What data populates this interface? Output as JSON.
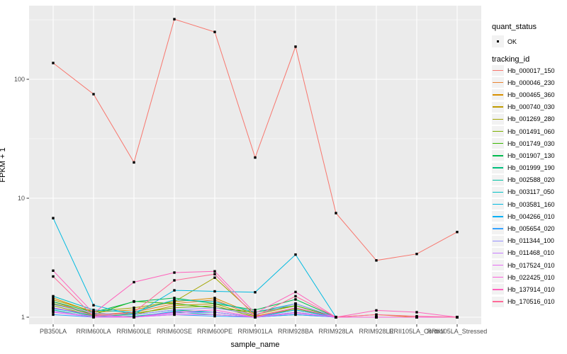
{
  "figure": {
    "panel_bg": "#EBEBEB",
    "grid_color": "#FFFFFF",
    "tick_color": "#333333",
    "tick_label_color": "#4D4D4D",
    "point_color": "#000000"
  },
  "legend": {
    "quant_status_title": "quant_status",
    "quant_status_items": [
      {
        "label": "OK"
      }
    ],
    "tracking_title": "tracking_id"
  },
  "chart_data": {
    "type": "line",
    "title": "",
    "xlabel": "sample_name",
    "ylabel": "FPKM + 1",
    "y_scale": "log10",
    "y_ticks": [
      1,
      10,
      100
    ],
    "y_minor_ticks": [
      3.162,
      31.62,
      316.2
    ],
    "ylim": [
      0.87,
      420
    ],
    "grid": true,
    "legend_position": "right",
    "marker": "black-square",
    "categories": [
      "PB350LA",
      "RRIM600LA",
      "RRIM600LE",
      "RRIM600SE",
      "RRIM600PE",
      "RRIM901LA",
      "RRIM928BA",
      "RRIM928LA",
      "RRIM928LE",
      "RRII105LA_Control",
      "RRII105LA_Stressed"
    ],
    "series": [
      {
        "name": "Hb_000017_150",
        "color": "#F8766D",
        "values": [
          137,
          75,
          20,
          320,
          250,
          22,
          188,
          7.5,
          3.0,
          3.4,
          5.2
        ]
      },
      {
        "name": "Hb_000046_230",
        "color": "#EA8331",
        "values": [
          1.35,
          1.05,
          1.1,
          1.3,
          1.4,
          1.02,
          1.2,
          1.0,
          1.0,
          1.0,
          1.0
        ]
      },
      {
        "name": "Hb_000465_360",
        "color": "#D89000",
        "values": [
          1.45,
          1.1,
          1.15,
          1.35,
          1.45,
          1.05,
          1.3,
          1.0,
          1.05,
          1.0,
          1.0
        ]
      },
      {
        "name": "Hb_000740_030",
        "color": "#C09B00",
        "values": [
          1.3,
          1.08,
          1.05,
          1.25,
          1.3,
          1.02,
          1.15,
          1.0,
          1.0,
          1.0,
          1.0
        ]
      },
      {
        "name": "Hb_001269_280",
        "color": "#A3A500",
        "values": [
          1.4,
          1.12,
          1.2,
          1.35,
          2.15,
          1.05,
          1.25,
          1.0,
          1.0,
          1.0,
          1.0
        ]
      },
      {
        "name": "Hb_001491_060",
        "color": "#7CAE00",
        "values": [
          1.25,
          1.03,
          1.08,
          1.2,
          1.25,
          1.0,
          1.18,
          1.0,
          1.0,
          1.0,
          1.0
        ]
      },
      {
        "name": "Hb_001749_030",
        "color": "#39B600",
        "values": [
          1.3,
          1.05,
          1.36,
          1.3,
          1.2,
          1.1,
          1.25,
          1.0,
          1.0,
          1.0,
          1.0
        ]
      },
      {
        "name": "Hb_001907_130",
        "color": "#00BB4E",
        "values": [
          1.35,
          1.1,
          1.35,
          1.45,
          1.3,
          1.15,
          1.41,
          1.0,
          1.0,
          1.0,
          1.0
        ]
      },
      {
        "name": "Hb_001999_190",
        "color": "#00BF7D",
        "values": [
          1.2,
          1.02,
          1.05,
          1.15,
          1.1,
          1.0,
          1.1,
          1.0,
          1.0,
          1.0,
          1.0
        ]
      },
      {
        "name": "Hb_002588_020",
        "color": "#00C1A3",
        "values": [
          1.15,
          1.0,
          1.02,
          1.1,
          1.05,
          1.0,
          1.05,
          1.0,
          1.0,
          1.0,
          1.0
        ]
      },
      {
        "name": "Hb_003117_050",
        "color": "#00BFC4",
        "values": [
          1.5,
          1.15,
          1.1,
          1.4,
          1.35,
          1.1,
          1.3,
          1.0,
          1.0,
          1.0,
          1.0
        ]
      },
      {
        "name": "Hb_003581_160",
        "color": "#00BAE0",
        "values": [
          6.8,
          1.26,
          1.05,
          1.68,
          1.65,
          1.62,
          3.36,
          1.0,
          1.0,
          1.0,
          1.0
        ]
      },
      {
        "name": "Hb_004266_010",
        "color": "#00B0F6",
        "values": [
          1.18,
          1.05,
          1.0,
          1.12,
          1.1,
          1.0,
          1.15,
          1.0,
          1.0,
          1.0,
          1.0
        ]
      },
      {
        "name": "Hb_005654_020",
        "color": "#35A2FF",
        "values": [
          1.05,
          1.0,
          1.0,
          1.05,
          1.02,
          1.0,
          1.05,
          1.0,
          1.0,
          1.0,
          1.0
        ]
      },
      {
        "name": "Hb_011344_100",
        "color": "#9590FF",
        "values": [
          1.28,
          1.08,
          1.05,
          1.15,
          1.2,
          1.05,
          1.3,
          1.0,
          1.0,
          1.0,
          1.0
        ]
      },
      {
        "name": "Hb_011468_010",
        "color": "#C77CFF",
        "values": [
          1.12,
          1.02,
          1.0,
          1.08,
          1.1,
          1.0,
          1.1,
          1.0,
          1.0,
          1.0,
          1.0
        ]
      },
      {
        "name": "Hb_017524_010",
        "color": "#E76BF3",
        "values": [
          1.1,
          1.0,
          1.0,
          1.05,
          1.05,
          1.0,
          1.08,
          1.0,
          1.0,
          1.0,
          1.0
        ]
      },
      {
        "name": "Hb_022425_010",
        "color": "#FA62DB",
        "values": [
          1.2,
          1.05,
          1.0,
          1.1,
          1.15,
          1.0,
          1.2,
          1.0,
          1.0,
          1.0,
          1.0
        ]
      },
      {
        "name": "Hb_137914_010",
        "color": "#FF62BC",
        "values": [
          2.46,
          1.08,
          1.97,
          2.37,
          2.43,
          1.08,
          1.63,
          1.0,
          1.14,
          1.1,
          1.0
        ]
      },
      {
        "name": "Hb_170516_010",
        "color": "#FF6A98",
        "values": [
          2.2,
          1.02,
          1.1,
          2.04,
          2.3,
          1.02,
          1.5,
          1.0,
          1.05,
          1.02,
          1.0
        ]
      }
    ]
  }
}
